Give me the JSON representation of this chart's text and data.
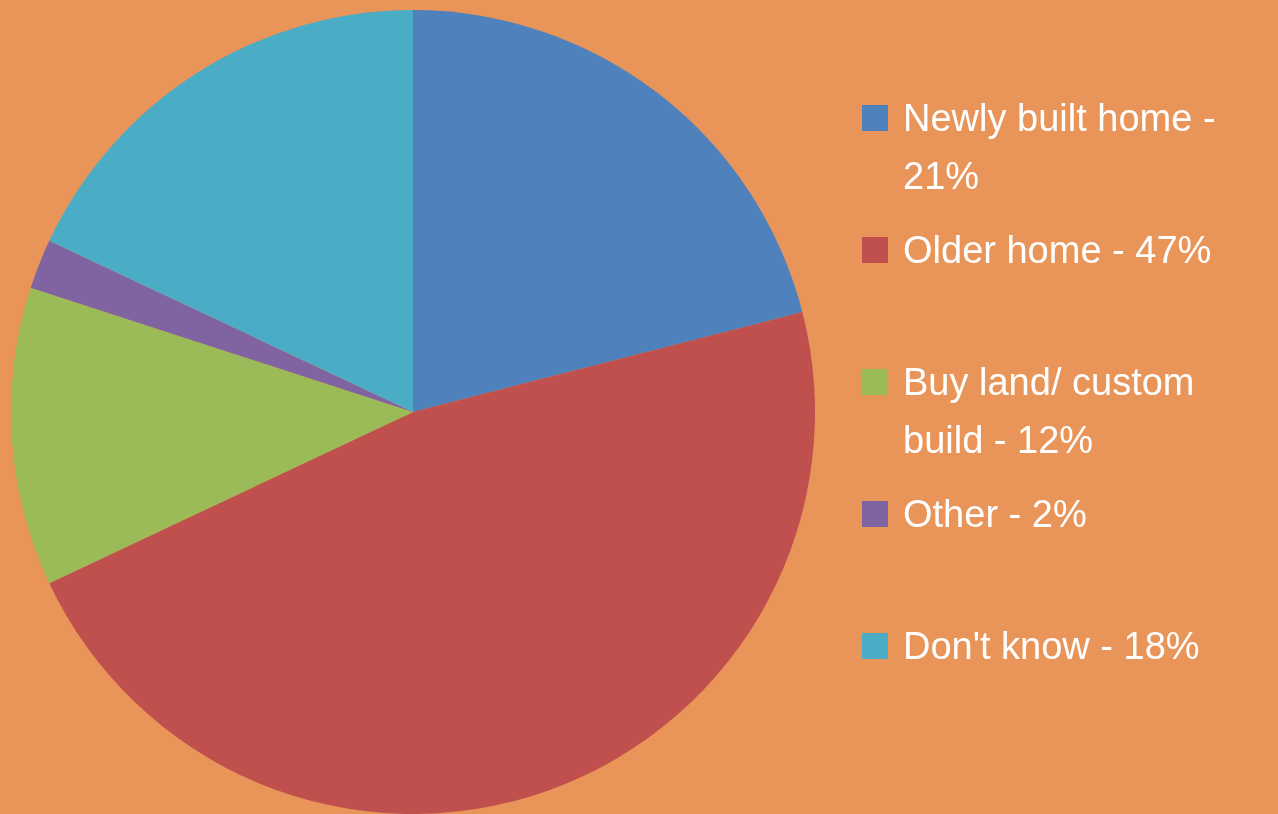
{
  "chart_data": {
    "type": "pie",
    "categories": [
      "Newly built home - 21%",
      "Older home - 47%",
      "Buy land/ custom build - 12%",
      "Other - 2%",
      "Don't know - 18%"
    ],
    "values": [
      21,
      47,
      12,
      2,
      18
    ],
    "colors": [
      "#4f81bd",
      "#c0504d",
      "#9bbb59",
      "#8064a2",
      "#4bacc6"
    ],
    "legend": "right"
  }
}
